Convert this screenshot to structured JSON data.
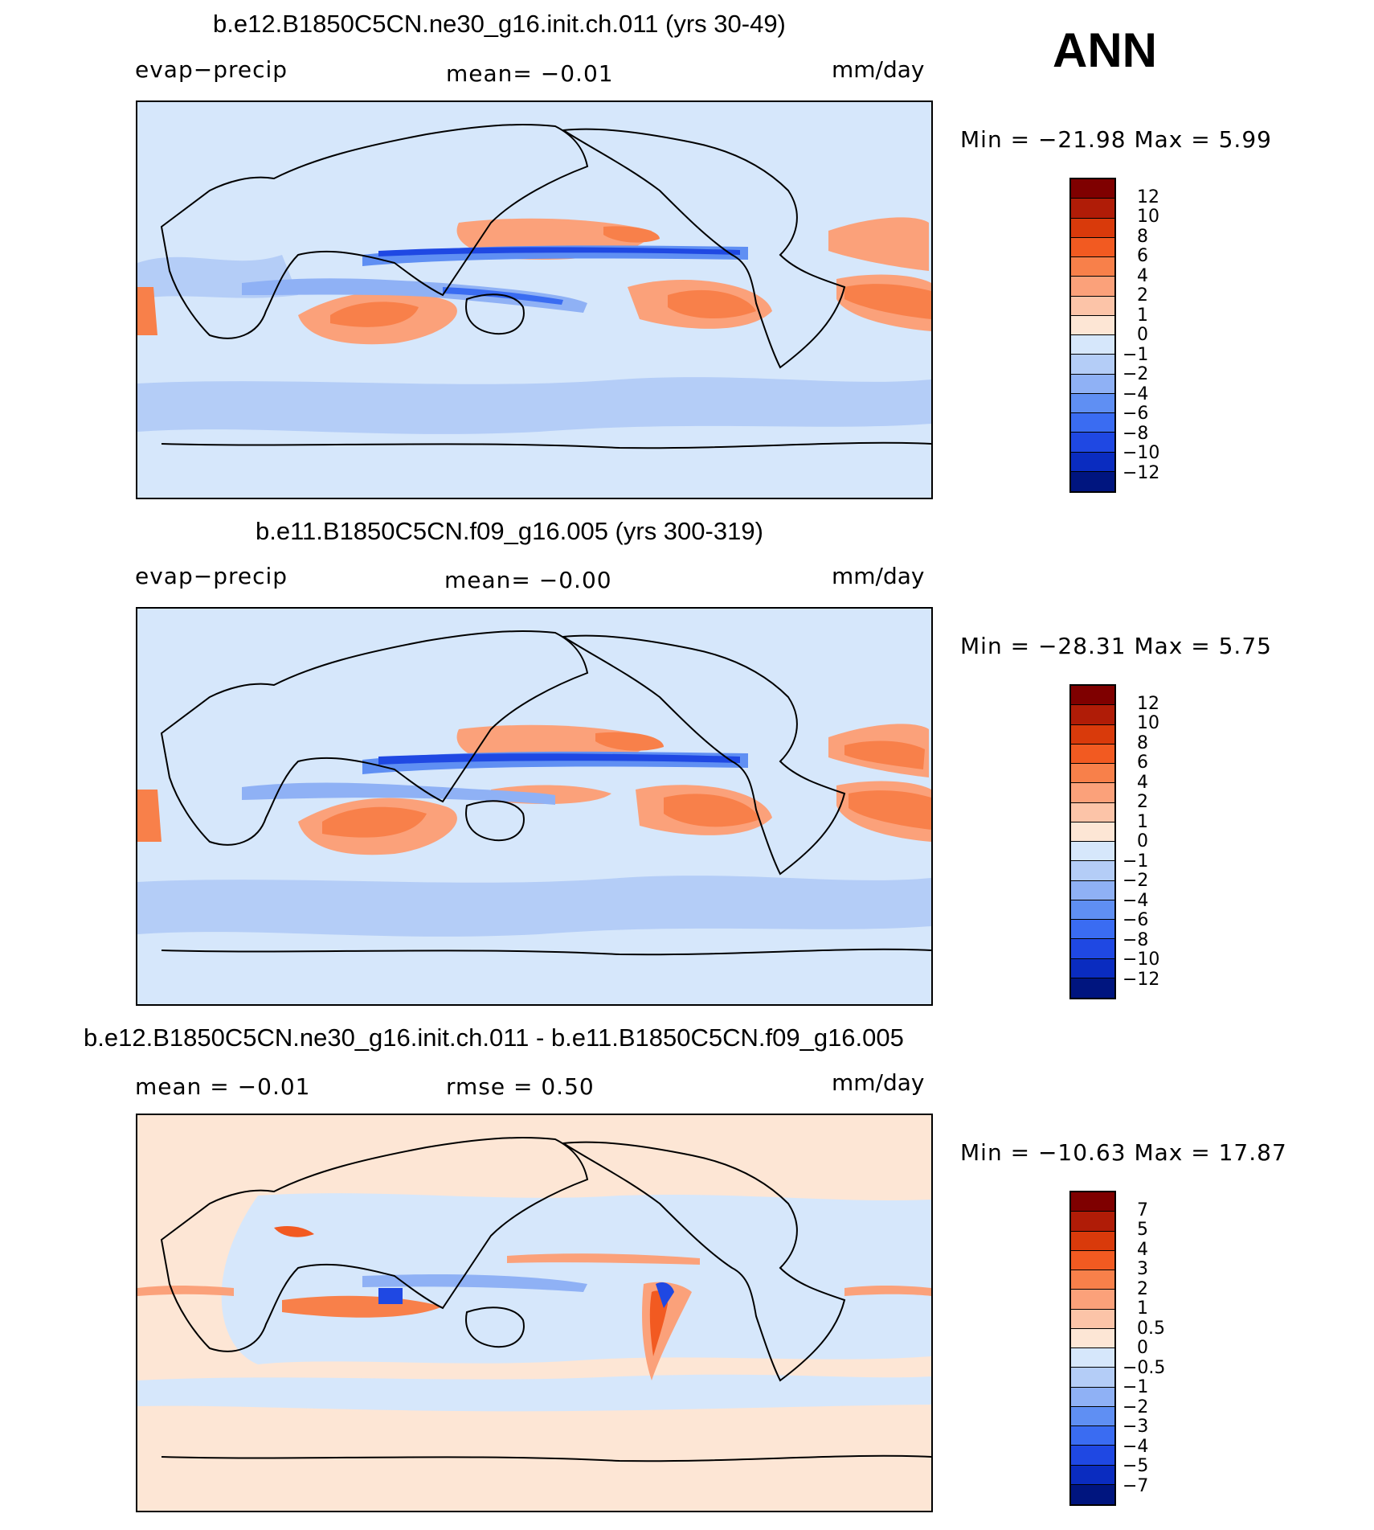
{
  "season": "ANN",
  "units": "mm/day",
  "panels": [
    {
      "title": "b.e12.B1850C5CN.ne30_g16.init.ch.011 (yrs 30-49)",
      "left_label": "evap−precip",
      "center_label": "mean=   −0.01",
      "right_label": "mm/day",
      "stats": "Min  =  −21.98  Max  =     5.99",
      "colorbar_ticks": [
        "12",
        "10",
        "8",
        "6",
        "4",
        "2",
        "1",
        "0",
        "−1",
        "−2",
        "−4",
        "−6",
        "−8",
        "−10",
        "−12"
      ]
    },
    {
      "title": "b.e11.B1850C5CN.f09_g16.005 (yrs 300-319)",
      "left_label": "evap−precip",
      "center_label": "mean=   −0.00",
      "right_label": "mm/day",
      "stats": "Min  =  −28.31  Max  =     5.75",
      "colorbar_ticks": [
        "12",
        "10",
        "8",
        "6",
        "4",
        "2",
        "1",
        "0",
        "−1",
        "−2",
        "−4",
        "−6",
        "−8",
        "−10",
        "−12"
      ]
    },
    {
      "title": "b.e12.B1850C5CN.ne30_g16.init.ch.011 - b.e11.B1850C5CN.f09_g16.005",
      "left_label": "mean  =    −0.01",
      "center_label": "rmse  =     0.50",
      "right_label": "mm/day",
      "stats": "Min  =  −10.63  Max  =   17.87",
      "colorbar_ticks": [
        "7",
        "5",
        "4",
        "3",
        "2",
        "1",
        "0.5",
        "0",
        "−0.5",
        "−1",
        "−2",
        "−3",
        "−4",
        "−5",
        "−7"
      ]
    }
  ],
  "colorbar_colors": [
    "#7f0000",
    "#b01c07",
    "#d93a0b",
    "#f25a21",
    "#f8804a",
    "#fba17a",
    "#fcc4a8",
    "#fde6d5",
    "#d6e7fb",
    "#b4cdf7",
    "#8fb1f5",
    "#5f8ff3",
    "#3a6cf2",
    "#1f48e3",
    "#0a2cc0",
    "#00157f"
  ],
  "map_colors": {
    "background": "#d6e7fb",
    "light_blue": "#b4cdf7",
    "mid_blue": "#8fb1f5",
    "blue": "#5f8ff3",
    "deep_blue": "#1f48e3",
    "pale_red": "#fcc4a8",
    "light_red": "#fba17a",
    "red": "#f8804a",
    "deep_red": "#f25a21",
    "diff_background": "#fde6d5"
  }
}
